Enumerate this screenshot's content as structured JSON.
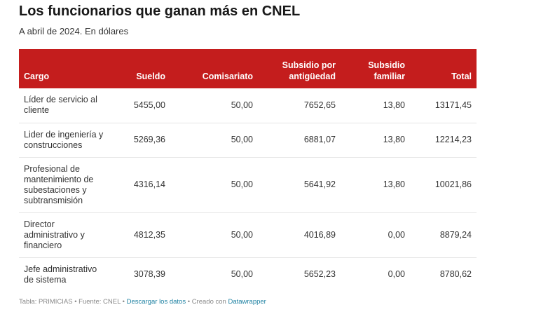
{
  "title": "Los funcionarios que ganan más en CNEL",
  "subtitle": "A abril de 2024. En dólares",
  "chart_data": {
    "type": "table",
    "title": "Los funcionarios que ganan más en CNEL",
    "subtitle": "A abril de 2024. En dólares",
    "columns": [
      "Cargo",
      "Sueldo",
      "Comisariato",
      "Subsidio por antigüedad",
      "Subsidio familiar",
      "Total"
    ],
    "rows": [
      [
        "Líder de servicio al cliente",
        "5455,00",
        "50,00",
        "7652,65",
        "13,80",
        "13171,45"
      ],
      [
        "Lider de ingeniería y construcciones",
        "5269,36",
        "50,00",
        "6881,07",
        "13,80",
        "12214,23"
      ],
      [
        "Profesional de mantenimiento de subestaciones y subtransmisión",
        "4316,14",
        "50,00",
        "5641,92",
        "13,80",
        "10021,86"
      ],
      [
        "Director administrativo y financiero",
        "4812,35",
        "50,00",
        "4016,89",
        "0,00",
        "8879,24"
      ],
      [
        "Jefe administrativo de sistema",
        "3078,39",
        "50,00",
        "5652,23",
        "0,00",
        "8780,62"
      ]
    ]
  },
  "header_color": "#c41d1d",
  "footer": {
    "prefix": "Tabla: PRIMICIAS • Fuente: CNEL • ",
    "download_link": "Descargar los datos",
    "middle": " • Creado con ",
    "tool_link": "Datawrapper"
  }
}
